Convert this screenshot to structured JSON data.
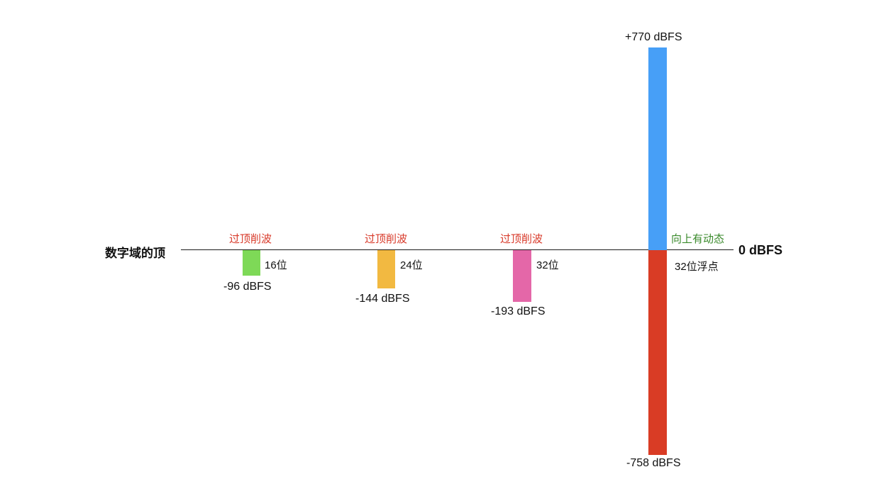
{
  "labels": {
    "left_title": "数字域的顶",
    "right_title": "0 dBFS",
    "clip_1": "过顶削波",
    "clip_2": "过顶削波",
    "clip_3": "过顶削波",
    "dynamic_up": "向上有动态"
  },
  "bars": [
    {
      "bits": "16位",
      "value_label": "-96 dBFS",
      "dbfs": -96,
      "color": "#7ed957"
    },
    {
      "bits": "24位",
      "value_label": "-144 dBFS",
      "dbfs": -144,
      "color": "#f2b941"
    },
    {
      "bits": "32位",
      "value_label": "-193 dBFS",
      "dbfs": -193,
      "color": "#e467a8"
    }
  ],
  "float_bar": {
    "bits": "32位浮点",
    "top_label": "+770 dBFS",
    "bottom_label": "-758 dBFS",
    "top_dbfs": 770,
    "bottom_dbfs": -758,
    "color_up": "#479ff7",
    "color_down": "#d93c25"
  }
}
